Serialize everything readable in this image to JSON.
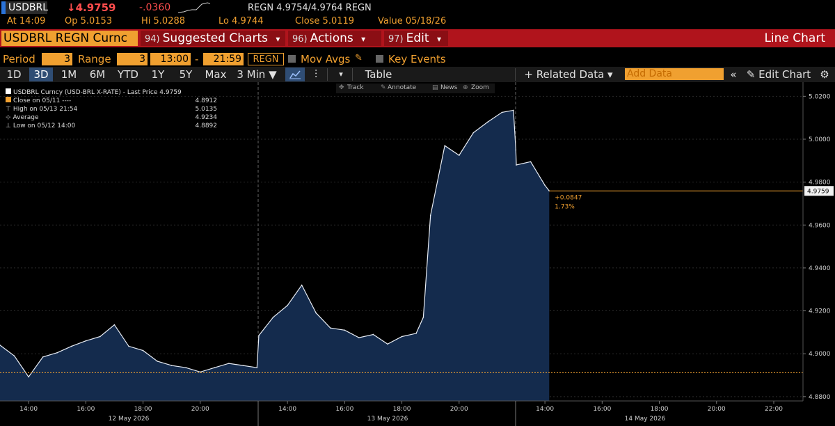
{
  "ticker": {
    "symbol": "USDBRL",
    "last": "↓4.9759",
    "change": "-.0360",
    "quote": "REGN 4.9754/4.9764 REGN",
    "at": "At 14:09",
    "open": "Op 5.0153",
    "hi": "Hi 5.0288",
    "lo": "Lo 4.9744",
    "close": "Close 5.0119",
    "value": "Value 05/18/26"
  },
  "command_bar": {
    "security": "USDBRL REGN Curnc",
    "menus": [
      {
        "num": "94)",
        "label": "Suggested Charts",
        "arrow": "▾"
      },
      {
        "num": "96)",
        "label": "Actions",
        "arrow": "▾"
      },
      {
        "num": "97)",
        "label": "Edit",
        "arrow": "▾"
      }
    ],
    "title": "Line Chart"
  },
  "period_row": {
    "period_label": "Period",
    "period_value": "3",
    "range_label": "Range",
    "range_value": "3",
    "time_from": "13:00",
    "dash": "-",
    "time_to": "21:59",
    "source": "REGN",
    "mov_avgs": "Mov Avgs",
    "key_events": "Key Events"
  },
  "tabs": {
    "items": [
      "1D",
      "3D",
      "1M",
      "6M",
      "YTD",
      "1Y",
      "5Y",
      "Max",
      "3 Min ▼"
    ],
    "selected": "3D",
    "table": "Table",
    "related_data": "+ Related Data ▾",
    "add_data_placeholder": "Add Data",
    "collapse": "«",
    "edit_chart": "✎ Edit Chart",
    "settings_icon": "gear-icon"
  },
  "chart_toolbar": {
    "track": "Track",
    "annotate": "Annotate",
    "news": "News",
    "zoom": "Zoom"
  },
  "legend": {
    "series": "USDBRL Curncy (USD-BRL X-RATE) - Last Price 4.9759",
    "close_label": "Close on 05/11 ----",
    "close_value": "4.8912",
    "high_label": "High on 05/13 21:54",
    "high_value": "5.0135",
    "average_label": "Average",
    "average_value": "4.9234",
    "low_label": "Low on 05/12 14:00",
    "low_value": "4.8892"
  },
  "colors": {
    "accent": "#f0a030",
    "command_bar": "#b0141c",
    "area_fill": "#142b4d",
    "line": "#e8edf5",
    "down": "#ff4d4d",
    "selected_tab": "#2f4d74"
  },
  "chart_data": {
    "type": "area",
    "ylim": [
      4.878,
      5.024
    ],
    "yticks": [
      "5.0200",
      "5.0000",
      "4.9800",
      "4.9600",
      "4.9400",
      "4.9200",
      "4.9000",
      "4.8800"
    ],
    "reference_close": 4.8912,
    "last_price_tag": "4.9759",
    "change_annotation": "+0.0847",
    "change_pct_annotation": "1.73%",
    "xtick_labels": [
      "14:00",
      "16:00",
      "18:00",
      "20:00",
      "14:00",
      "16:00",
      "18:00",
      "20:00",
      "14:00",
      "16:00",
      "18:00",
      "20:00",
      "22:00"
    ],
    "day_labels": [
      "12 May 2026",
      "13 May 2026",
      "14 May 2026"
    ],
    "x": [
      "05/12 13:00",
      "05/12 13:30",
      "05/12 14:00",
      "05/12 14:30",
      "05/12 15:00",
      "05/12 15:30",
      "05/12 16:00",
      "05/12 16:30",
      "05/12 17:00",
      "05/12 17:30",
      "05/12 18:00",
      "05/12 18:30",
      "05/12 19:00",
      "05/12 19:30",
      "05/12 20:00",
      "05/12 20:30",
      "05/12 21:00",
      "05/12 21:30",
      "05/12 21:59",
      "05/13 13:00",
      "05/13 13:30",
      "05/13 14:00",
      "05/13 14:30",
      "05/13 15:00",
      "05/13 15:30",
      "05/13 16:00",
      "05/13 16:30",
      "05/13 17:00",
      "05/13 17:30",
      "05/13 18:00",
      "05/13 18:30",
      "05/13 18:45",
      "05/13 19:00",
      "05/13 19:30",
      "05/13 20:00",
      "05/13 20:30",
      "05/13 21:00",
      "05/13 21:30",
      "05/13 21:54",
      "05/13 21:59",
      "05/14 13:00",
      "05/14 13:30",
      "05/14 14:00",
      "05/14 14:09"
    ],
    "series": [
      {
        "values": [
          4.904,
          4.899,
          4.8892,
          4.8985,
          4.9005,
          4.9035,
          4.906,
          4.908,
          4.9135,
          4.9035,
          4.9015,
          4.8965,
          4.8945,
          4.8935,
          4.8915,
          4.8935,
          4.8955,
          4.8945,
          4.8935,
          4.9085,
          4.917,
          4.9225,
          4.932,
          4.919,
          4.912,
          4.911,
          4.9075,
          4.909,
          4.9045,
          4.908,
          4.9095,
          4.917,
          4.9645,
          4.997,
          4.9925,
          5.003,
          5.008,
          5.0125,
          5.0135,
          4.995,
          4.988,
          4.9895,
          4.9785,
          4.9759
        ]
      }
    ]
  }
}
